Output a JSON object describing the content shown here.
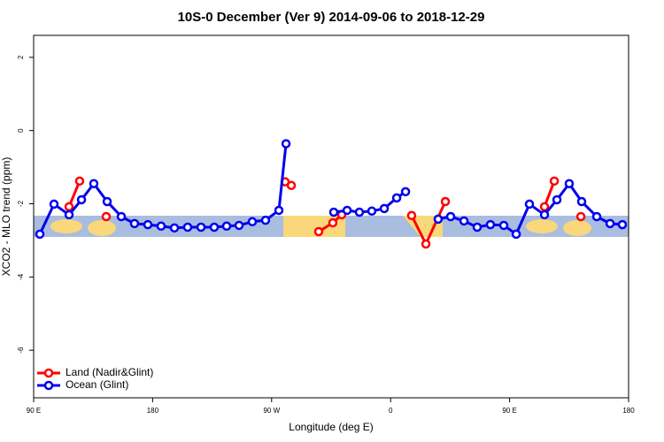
{
  "chart_data": {
    "type": "line",
    "title": "10S-0 December (Ver 9)   2014-09-06 to 2018-12-29",
    "x_label": "Longitude (deg E)",
    "y_label": "XCO2 - MLO trend (ppm)",
    "xlim": [
      90,
      540
    ],
    "xticks": [
      {
        "value": 90,
        "label": "90 E"
      },
      180,
      {
        "value": 270,
        "label": "90 W"
      },
      {
        "value": 360,
        "label": "0"
      },
      {
        "value": 450,
        "label": "90 E"
      },
      {
        "value": 540,
        "label": "180"
      }
    ],
    "ylim": [
      -7.3,
      2.6
    ],
    "yticks": [
      2,
      0,
      -2,
      -4,
      -6
    ],
    "legend": "bottom-left",
    "series": [
      {
        "name": "Land (Nadir&Glint)",
        "color": "#ff0000",
        "x": [
          116.8,
          124.8,
          null,
          144.9,
          null,
          280.2,
          284.9,
          null,
          305.6,
          316.3,
          323.0,
          null,
          375.9,
          386.7,
          401.4,
          null,
          476.4,
          483.8,
          null,
          503.9
        ],
        "values": [
          -2.08,
          -1.38,
          null,
          -2.35,
          null,
          -1.4,
          -1.5,
          null,
          -2.76,
          -2.52,
          -2.3,
          null,
          -2.32,
          -3.1,
          -1.94,
          null,
          -2.08,
          -1.38,
          null,
          -2.35
        ]
      },
      {
        "name": "Ocean (Glint)",
        "color": "#0000ee",
        "x": [
          94.7,
          105.4,
          116.8,
          126.2,
          135.5,
          145.6,
          156.3,
          166.3,
          176.4,
          186.4,
          196.5,
          206.5,
          216.6,
          226.6,
          236.0,
          245.4,
          255.4,
          265.4,
          275.5,
          280.9,
          null,
          317.0,
          327.1,
          336.4,
          345.8,
          355.2,
          364.6,
          371.3,
          null,
          396.0,
          405.4,
          415.5,
          425.5,
          435.5,
          445.6,
          455.0,
          465.0,
          476.4,
          485.8,
          495.1,
          504.5,
          515.9,
          526.0,
          535.3
        ],
        "values": [
          -2.83,
          -2.01,
          -2.3,
          -1.89,
          -1.45,
          -1.94,
          -2.35,
          -2.54,
          -2.57,
          -2.61,
          -2.66,
          -2.64,
          -2.64,
          -2.64,
          -2.61,
          -2.59,
          -2.49,
          -2.45,
          -2.18,
          -0.36,
          null,
          -2.23,
          -2.18,
          -2.23,
          -2.2,
          -2.13,
          -1.84,
          -1.67,
          null,
          -2.42,
          -2.35,
          -2.47,
          -2.64,
          -2.57,
          -2.59,
          -2.83,
          -2.01,
          -2.3,
          -1.89,
          -1.45,
          -1.94,
          -2.35,
          -2.54,
          -2.57
        ]
      }
    ]
  }
}
